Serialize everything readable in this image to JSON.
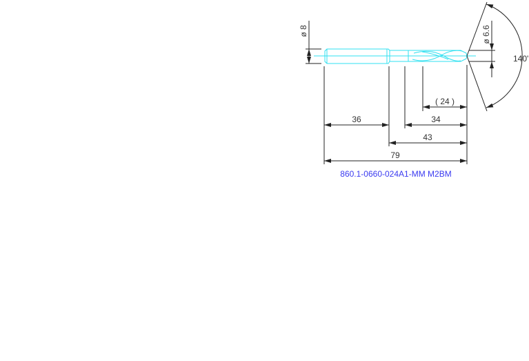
{
  "drawing": {
    "part_label": "860.1-0660-024A1-MM M2BM",
    "colors": {
      "tool": "#2fe0f0",
      "dimensions": "#222222",
      "label": "#3a3af0"
    },
    "dimensions": {
      "shank_diameter": "ø 8",
      "cutting_diameter": "ø 6.6",
      "point_angle": "140'",
      "flute_length": "( 24 )",
      "cutting_length": "34",
      "shank_length": "36",
      "body_length": "43",
      "overall_length": "79"
    }
  }
}
